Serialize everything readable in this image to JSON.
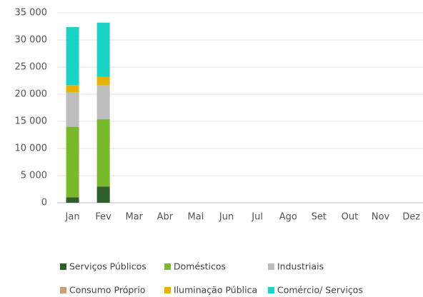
{
  "chart_data": {
    "type": "stacked_bar",
    "categories": [
      "Jan",
      "Fev",
      "Mar",
      "Abr",
      "Mai",
      "Jun",
      "Jul",
      "Ago",
      "Set",
      "Out",
      "Nov",
      "Dez"
    ],
    "series": [
      {
        "name": "Serviços Públicos",
        "color": "#2e5e2a",
        "values": [
          1000,
          3000,
          null,
          null,
          null,
          null,
          null,
          null,
          null,
          null,
          null,
          null
        ]
      },
      {
        "name": "Domésticos",
        "color": "#7ab929",
        "values": [
          13000,
          12400,
          null,
          null,
          null,
          null,
          null,
          null,
          null,
          null,
          null,
          null
        ]
      },
      {
        "name": "Industriais",
        "color": "#bdbdbd",
        "values": [
          6400,
          6300,
          null,
          null,
          null,
          null,
          null,
          null,
          null,
          null,
          null,
          null
        ]
      },
      {
        "name": "Consumo Próprio",
        "color": "#c8a07a",
        "values": [
          0,
          0,
          null,
          null,
          null,
          null,
          null,
          null,
          null,
          null,
          null,
          null
        ]
      },
      {
        "name": "Iluminação Pública",
        "color": "#e8b100",
        "values": [
          1300,
          1500,
          null,
          null,
          null,
          null,
          null,
          null,
          null,
          null,
          null,
          null
        ]
      },
      {
        "name": "Comércio/ Serviços",
        "color": "#19d3c5",
        "values": [
          10700,
          10000,
          null,
          null,
          null,
          null,
          null,
          null,
          null,
          null,
          null,
          null
        ]
      }
    ],
    "ylim": [
      0,
      35000
    ],
    "yticks": [
      0,
      {
        "value": 5000,
        "label": "5 000"
      },
      {
        "value": 10000,
        "label": "10 000"
      },
      {
        "value": 15000,
        "label": "15 000"
      },
      {
        "value": 20000,
        "label": "20 000"
      },
      {
        "value": 25000,
        "label": "25 000"
      },
      {
        "value": 30000,
        "label": "30 000"
      },
      {
        "value": 35000,
        "label": "35 000"
      }
    ],
    "grid": true,
    "legend": "bottom"
  }
}
